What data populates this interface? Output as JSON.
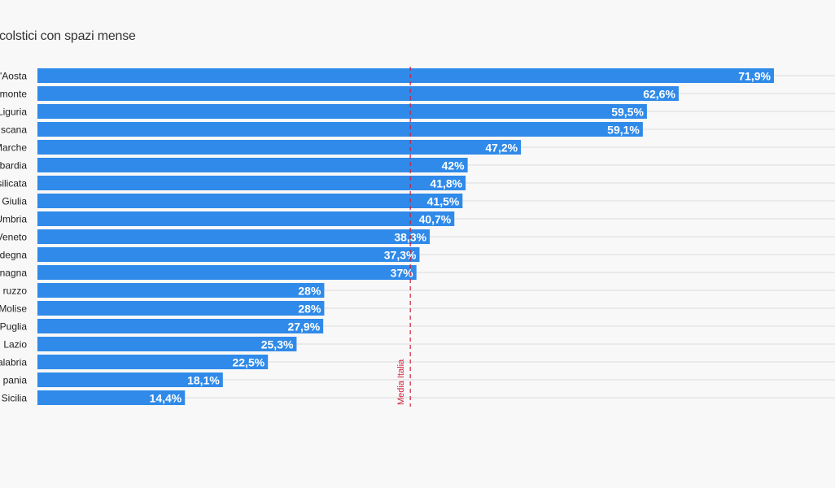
{
  "chart_data": {
    "type": "bar",
    "orientation": "horizontal",
    "title": "colstici con spazi mense",
    "categories": [
      "'Aosta",
      "monte",
      "Liguria",
      "scana",
      "Marche",
      "bardia",
      "silicata",
      "Giulia",
      "Umbria",
      "Veneto",
      "degna",
      "nagna",
      "ruzzo",
      "Molise",
      "Puglia",
      "Lazio",
      "alabria",
      "pania",
      "Sicilia"
    ],
    "values": [
      71.9,
      62.6,
      59.5,
      59.1,
      47.2,
      42,
      41.8,
      41.5,
      40.7,
      38.3,
      37.3,
      37,
      28,
      28,
      27.9,
      25.3,
      22.5,
      18.1,
      14.4
    ],
    "value_labels": [
      "71,9%",
      "62,6%",
      "59,5%",
      "59,1%",
      "47,2%",
      "42%",
      "41,8%",
      "41,5%",
      "40,7%",
      "38,3%",
      "37,3%",
      "37%",
      "28%",
      "28%",
      "27,9%",
      "25,3%",
      "22,5%",
      "18,1%",
      "14,4%"
    ],
    "reference_line": {
      "value": 36.4,
      "label": "Media Italia",
      "color": "#d0213a"
    },
    "xlim": [
      0,
      75
    ],
    "grid": true,
    "colors": {
      "bar": "#2f8ae9",
      "grid": "#e6e6e6",
      "value_text": "#ffffff"
    }
  }
}
